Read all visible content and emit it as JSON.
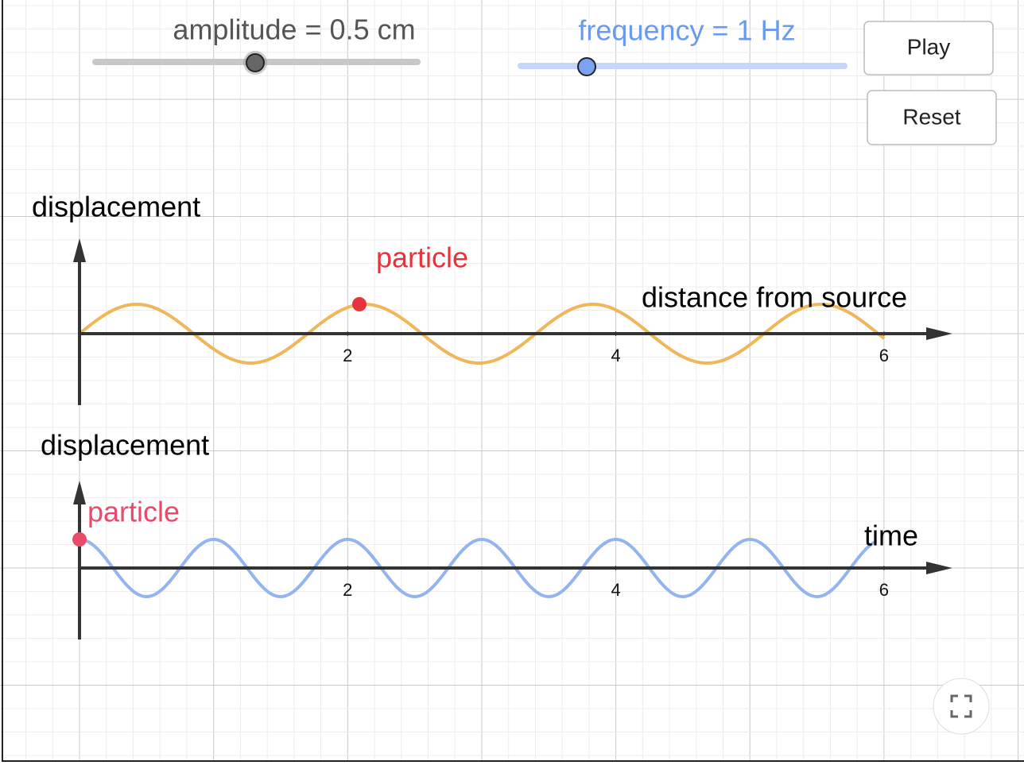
{
  "sliders": [
    {
      "label": "amplitude = 0.5 cm"
    },
    {
      "label": "frequency = 1 Hz"
    }
  ],
  "buttons": [
    "Play",
    "Reset"
  ],
  "graphs": [
    {
      "y_label": "displacement",
      "x_label": "distance from source",
      "point_label": "particle",
      "xticks": [
        2,
        4,
        6
      ]
    },
    {
      "y_label": "displacement",
      "x_label": "time",
      "point_label": "particle",
      "xticks": [
        2,
        4,
        6
      ]
    }
  ]
}
